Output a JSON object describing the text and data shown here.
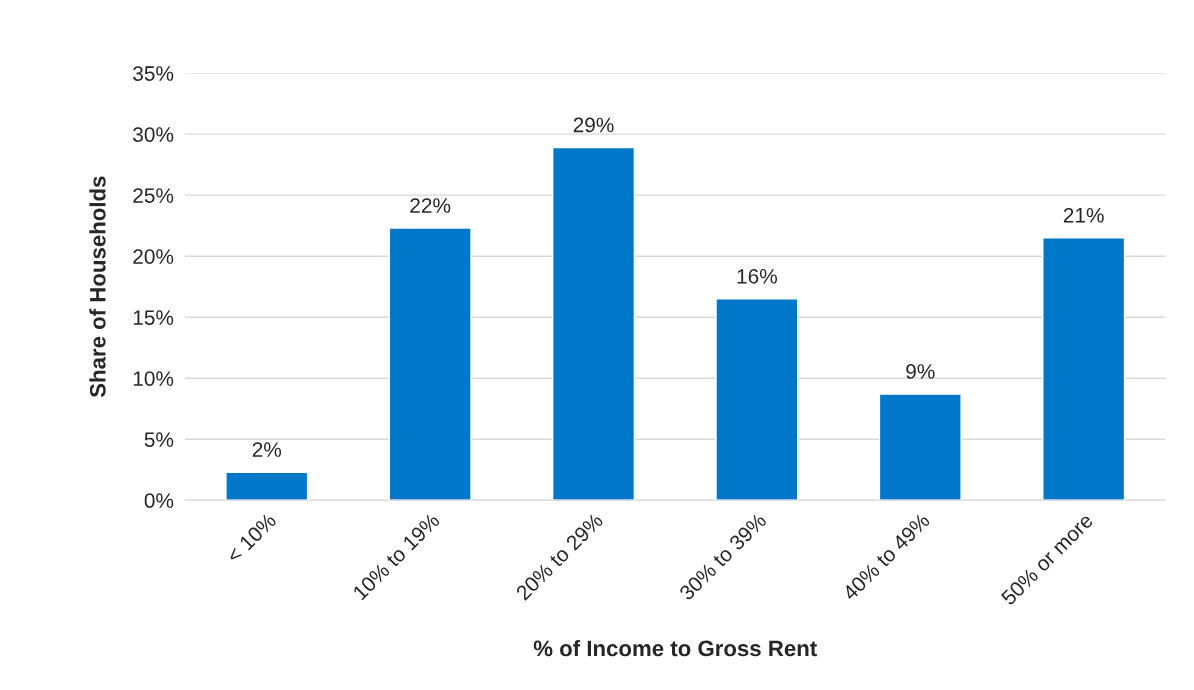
{
  "chart_data": {
    "type": "bar",
    "xlabel": "% of Income to Gross Rent",
    "ylabel": "Share of Households",
    "categories": [
      "< 10%",
      "10% to 19%",
      "20% to 29%",
      "30% to 39%",
      "40% to 49%",
      "50% or more"
    ],
    "values": [
      2.3,
      22.3,
      28.9,
      16.5,
      8.7,
      21.5
    ],
    "value_labels": [
      "2%",
      "22%",
      "29%",
      "16%",
      "9%",
      "21%"
    ],
    "color": "#0077c8",
    "ylim": [
      0,
      35
    ],
    "yticks": [
      {
        "value": 0,
        "label": "0%"
      },
      {
        "value": 5,
        "label": "5%"
      },
      {
        "value": 10,
        "label": "10%"
      },
      {
        "value": 15,
        "label": "15%"
      },
      {
        "value": 20,
        "label": "20%"
      },
      {
        "value": 25,
        "label": "25%"
      },
      {
        "value": 30,
        "label": "30%"
      },
      {
        "value": 35,
        "label": "35%"
      }
    ],
    "grid": "y"
  }
}
